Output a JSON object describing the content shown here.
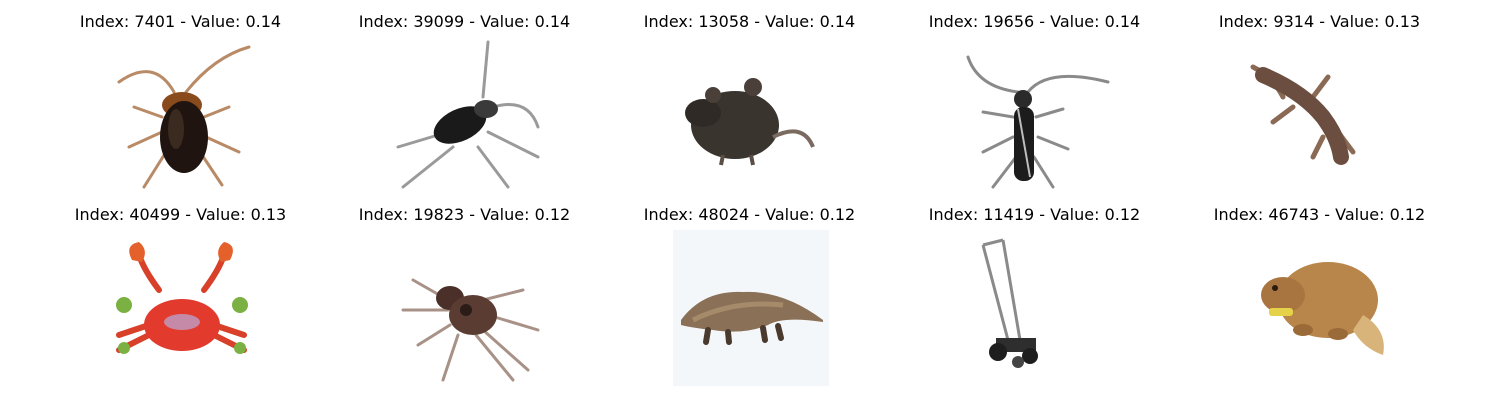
{
  "figure": {
    "panels": [
      {
        "title": "Index: 7401 - Value: 0.14",
        "image": "cockroach"
      },
      {
        "title": "Index: 39099 - Value: 0.14",
        "image": "cockroach-grayscale"
      },
      {
        "title": "Index: 13058 - Value: 0.14",
        "image": "rat"
      },
      {
        "title": "Index: 19656 - Value: 0.14",
        "image": "longhorn-beetle"
      },
      {
        "title": "Index: 9314 - Value: 0.13",
        "image": "lizard"
      },
      {
        "title": "Index: 40499 - Value: 0.13",
        "image": "crab"
      },
      {
        "title": "Index: 19823 - Value: 0.12",
        "image": "spider"
      },
      {
        "title": "Index: 48024 - Value: 0.12",
        "image": "anteater"
      },
      {
        "title": "Index: 11419 - Value: 0.12",
        "image": "lawn-mower"
      },
      {
        "title": "Index: 46743 - Value: 0.12",
        "image": "beaver"
      }
    ]
  }
}
